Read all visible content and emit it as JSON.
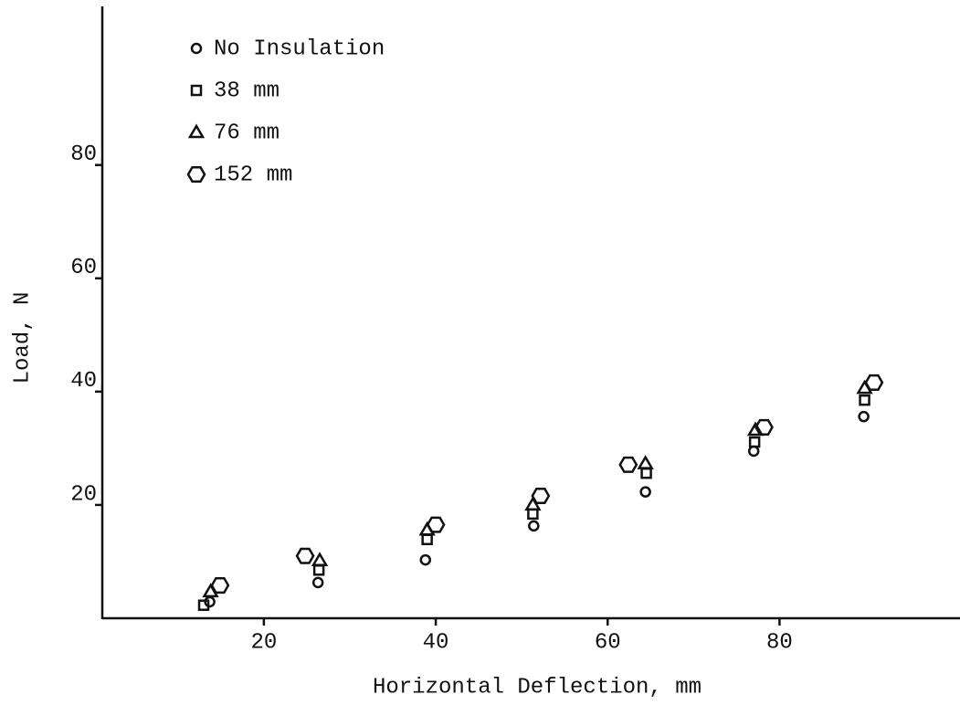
{
  "chart_data": {
    "type": "scatter",
    "x_label": "Horizontal Deflection, mm",
    "y_label": "Load, N",
    "xlim": [
      1.2,
      101
    ],
    "ylim": [
      0,
      108
    ],
    "xticks": [
      20,
      40,
      60,
      80
    ],
    "yticks": [
      20,
      40,
      60,
      80
    ],
    "legend": "upper left",
    "series": [
      {
        "name": "No Insulation",
        "color": "#111111",
        "marker": "circle",
        "x": [
          13.7,
          26.3,
          38.8,
          51.4,
          64.4,
          77.0,
          89.8
        ],
        "values": [
          2.9,
          6.3,
          10.3,
          16.3,
          22.3,
          29.5,
          35.6
        ]
      },
      {
        "name": "38 mm",
        "color": "#111111",
        "marker": "square",
        "x": [
          13.0,
          26.4,
          39.0,
          51.3,
          64.5,
          77.1,
          89.9
        ],
        "values": [
          2.3,
          8.5,
          13.9,
          18.4,
          25.6,
          31.1,
          38.5
        ]
      },
      {
        "name": "76 mm",
        "color": "#111111",
        "marker": "triangle",
        "x": [
          13.8,
          26.5,
          39.0,
          51.3,
          64.4,
          77.2,
          89.9
        ],
        "values": [
          4.7,
          10.2,
          15.6,
          20.0,
          27.3,
          33.2,
          40.6
        ]
      },
      {
        "name": "152 mm",
        "color": "#111111",
        "marker": "hexagon",
        "x": [
          14.9,
          24.8,
          40.0,
          52.2,
          62.4,
          78.2,
          91.0
        ],
        "values": [
          5.8,
          11.0,
          16.5,
          21.6,
          27.1,
          33.7,
          41.6
        ]
      }
    ]
  }
}
